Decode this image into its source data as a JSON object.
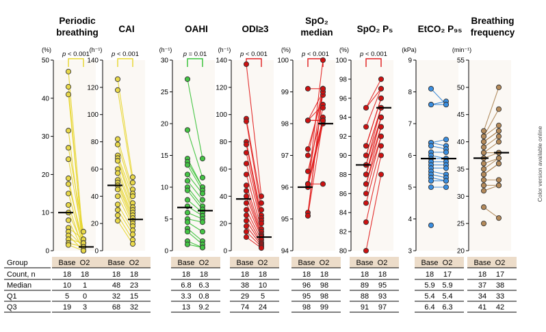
{
  "side_note": "Color version available online",
  "table": {
    "row_labels": [
      "Group",
      "Count, n",
      "Median",
      "Q1",
      "Q3"
    ],
    "group_labels": [
      "Base",
      "O2"
    ]
  },
  "colors": {
    "yellow": "#e7d52a",
    "yellow_fill": "#e8d84a",
    "green": "#33c033",
    "green_fill": "#44c444",
    "red": "#e01a1a",
    "red_fill": "#cc1111",
    "blue": "#2b7fd4",
    "blue_fill": "#3a8ee0",
    "brown": "#a8804f",
    "brown_fill": "#b48a5a",
    "panel_bg": "#fbf8f4",
    "table_header_bg": "#ecdcc9"
  },
  "chart_data": [
    {
      "type": "scatter",
      "title": [
        "Periodic",
        "breathing"
      ],
      "unit": "(%)",
      "ylim": [
        0,
        50
      ],
      "yticks": [
        0,
        10,
        20,
        30,
        40,
        50
      ],
      "pvalue": "p < 0.001",
      "color": "yellow",
      "pairs": [
        [
          47,
          2
        ],
        [
          43,
          0
        ],
        [
          41,
          1
        ],
        [
          31.5,
          0
        ],
        [
          27,
          5
        ],
        [
          24,
          3
        ],
        [
          19,
          0
        ],
        [
          17.5,
          2
        ],
        [
          15,
          1
        ],
        [
          12,
          0
        ],
        [
          10,
          1
        ],
        [
          8,
          0
        ],
        [
          6,
          3
        ],
        [
          5,
          1
        ],
        [
          4,
          0
        ],
        [
          3,
          2
        ],
        [
          2,
          1
        ],
        [
          1.5,
          0
        ]
      ],
      "median": [
        10,
        1
      ],
      "table": {
        "count": [
          18,
          18
        ],
        "median": [
          10,
          1
        ],
        "q1": [
          5,
          0
        ],
        "q3": [
          19,
          3
        ]
      }
    },
    {
      "type": "scatter",
      "title": [
        "CAI"
      ],
      "unit": "(h⁻¹)",
      "ylim": [
        0,
        140
      ],
      "yticks": [
        0,
        20,
        40,
        60,
        80,
        100,
        120,
        140
      ],
      "pvalue": "p < 0.001",
      "color": "yellow",
      "pairs": [
        [
          126,
          54
        ],
        [
          118,
          50
        ],
        [
          82,
          45
        ],
        [
          78,
          42
        ],
        [
          70,
          40
        ],
        [
          68,
          35
        ],
        [
          66,
          32
        ],
        [
          60,
          30
        ],
        [
          57,
          28
        ],
        [
          52,
          26
        ],
        [
          50,
          24
        ],
        [
          48,
          22
        ],
        [
          45,
          20
        ],
        [
          40,
          18
        ],
        [
          34,
          15
        ],
        [
          30,
          12
        ],
        [
          26,
          8
        ],
        [
          22,
          5
        ]
      ],
      "median": [
        48,
        23
      ],
      "table": {
        "count": [
          18,
          18
        ],
        "median": [
          48,
          23
        ],
        "q1": [
          32,
          15
        ],
        "q3": [
          68,
          32
        ]
      }
    },
    {
      "type": "scatter",
      "title": [
        "OAHI"
      ],
      "unit": "(h⁻¹)",
      "ylim": [
        0,
        30
      ],
      "yticks": [
        0,
        5,
        10,
        15,
        20,
        25,
        30
      ],
      "pvalue": "p = 0.01",
      "color": "green",
      "pairs": [
        [
          27,
          14.5
        ],
        [
          19,
          11.5
        ],
        [
          14.5,
          10
        ],
        [
          14,
          10
        ],
        [
          13.5,
          9.5
        ],
        [
          12,
          9
        ],
        [
          11,
          8
        ],
        [
          10,
          7
        ],
        [
          9.5,
          6.5
        ],
        [
          8,
          6
        ],
        [
          7,
          5.5
        ],
        [
          6,
          5
        ],
        [
          5,
          4.5
        ],
        [
          4.5,
          3
        ],
        [
          3.5,
          1.5
        ],
        [
          3,
          1
        ],
        [
          1.5,
          0.5
        ],
        [
          1,
          0.5
        ]
      ],
      "median": [
        6.8,
        6.3
      ],
      "table": {
        "count": [
          18,
          18
        ],
        "median": [
          6.8,
          6.3
        ],
        "q1": [
          3.3,
          0.8
        ],
        "q3": [
          13,
          9.2
        ]
      }
    },
    {
      "type": "scatter",
      "title": [
        "ODI≥3"
      ],
      "unit": "(h⁻¹)",
      "ylim": [
        0,
        140
      ],
      "yticks": [
        0,
        20,
        40,
        60,
        80,
        100,
        120,
        140
      ],
      "pvalue": "p < 0.001",
      "color": "red",
      "pairs": [
        [
          137,
          40
        ],
        [
          97,
          35
        ],
        [
          95,
          30
        ],
        [
          80,
          26
        ],
        [
          78,
          24
        ],
        [
          72,
          22
        ],
        [
          64,
          20
        ],
        [
          56,
          16
        ],
        [
          48,
          14
        ],
        [
          44,
          12
        ],
        [
          40,
          11
        ],
        [
          35,
          10
        ],
        [
          30,
          8
        ],
        [
          26,
          6
        ],
        [
          22,
          5
        ],
        [
          18,
          4
        ],
        [
          14,
          3
        ],
        [
          10,
          2
        ]
      ],
      "median": [
        38,
        10
      ],
      "table": {
        "count": [
          18,
          18
        ],
        "median": [
          38,
          10
        ],
        "q1": [
          29,
          5
        ],
        "q3": [
          74,
          24
        ]
      }
    },
    {
      "type": "scatter",
      "title": [
        "SpO₂",
        "median"
      ],
      "unit": "(%)",
      "ylim": [
        94,
        100
      ],
      "yticks": [
        94,
        95,
        96,
        97,
        98,
        99,
        100
      ],
      "pvalue": "p < 0.001",
      "color": "red",
      "pairs": [
        [
          99.1,
          99.1
        ],
        [
          98.1,
          99.0
        ],
        [
          98.1,
          98.6
        ],
        [
          98.1,
          98.1
        ],
        [
          97.2,
          98.9
        ],
        [
          97.0,
          99.1
        ],
        [
          96.5,
          98.5
        ],
        [
          96.1,
          96.1
        ],
        [
          96.1,
          98.2
        ],
        [
          96.1,
          98.1
        ],
        [
          96.1,
          99.1
        ],
        [
          96.0,
          98.0
        ],
        [
          95.2,
          99.0
        ],
        [
          95.1,
          98.1
        ],
        [
          95.1,
          99.1
        ],
        [
          96.1,
          100
        ],
        [
          98.1,
          98.1
        ],
        [
          96.1,
          98.1
        ]
      ],
      "median": [
        96,
        98
      ],
      "table": {
        "count": [
          18,
          18
        ],
        "median": [
          96,
          98
        ],
        "q1": [
          95,
          98
        ],
        "q3": [
          98,
          99
        ]
      }
    },
    {
      "type": "scatter",
      "title": [
        "SpO₂ P₅"
      ],
      "unit": "(%)",
      "ylim": [
        80,
        100
      ],
      "yticks": [
        80,
        82,
        84,
        86,
        88,
        90,
        92,
        94,
        96,
        98,
        100
      ],
      "pvalue": "p < 0.001",
      "color": "red",
      "pairs": [
        [
          95,
          98
        ],
        [
          95,
          97
        ],
        [
          93,
          97
        ],
        [
          91,
          96
        ],
        [
          91,
          96
        ],
        [
          90,
          95
        ],
        [
          90,
          95
        ],
        [
          89,
          95
        ],
        [
          89,
          94
        ],
        [
          88,
          94
        ],
        [
          88,
          94
        ],
        [
          88,
          93
        ],
        [
          87,
          93
        ],
        [
          87,
          92
        ],
        [
          86,
          92
        ],
        [
          85,
          91
        ],
        [
          83,
          90
        ],
        [
          80,
          88
        ]
      ],
      "median": [
        89,
        95
      ],
      "table": {
        "count": [
          18,
          18
        ],
        "median": [
          89,
          95
        ],
        "q1": [
          88,
          93
        ],
        "q3": [
          91,
          97
        ]
      }
    },
    {
      "type": "scatter",
      "title": [
        "EtCO₂ P₉₅"
      ],
      "unit": "(kPa)",
      "ylim": [
        3,
        9
      ],
      "yticks": [
        3,
        4,
        5,
        6,
        7,
        8,
        9
      ],
      "pvalue": "",
      "color": "blue",
      "pairs": [
        [
          8.1,
          7.6
        ],
        [
          7.6,
          7.7
        ],
        [
          7.6,
          7.6
        ],
        [
          6.4,
          6.5
        ],
        [
          6.4,
          6.3
        ],
        [
          6.3,
          6.2
        ],
        [
          6.1,
          6.1
        ],
        [
          6.0,
          5.9
        ],
        [
          5.9,
          5.9
        ],
        [
          5.8,
          5.8
        ],
        [
          5.7,
          5.7
        ],
        [
          5.6,
          5.6
        ],
        [
          5.5,
          5.4
        ],
        [
          5.4,
          5.3
        ],
        [
          5.3,
          5.2
        ],
        [
          5.2,
          5.2
        ],
        [
          5.0,
          5.0
        ],
        [
          3.8,
          null
        ]
      ],
      "median": [
        5.9,
        5.9
      ],
      "table": {
        "count": [
          18,
          17
        ],
        "median": [
          5.9,
          5.9
        ],
        "q1": [
          5.4,
          5.4
        ],
        "q3": [
          6.4,
          6.3
        ]
      }
    },
    {
      "type": "scatter",
      "title": [
        "Breathing",
        "frequency"
      ],
      "unit": "(min⁻¹)",
      "ylim": [
        20,
        55
      ],
      "yticks": [
        20,
        25,
        30,
        35,
        40,
        45,
        50,
        55
      ],
      "pvalue": "",
      "color": "brown",
      "pairs": [
        [
          42,
          50
        ],
        [
          41,
          46
        ],
        [
          41,
          43
        ],
        [
          40,
          42
        ],
        [
          40,
          42
        ],
        [
          39,
          41
        ],
        [
          38,
          40
        ],
        [
          38,
          38
        ],
        [
          37,
          38
        ],
        [
          36,
          37
        ],
        [
          35,
          37
        ],
        [
          34,
          36
        ],
        [
          34,
          36
        ],
        [
          33,
          33
        ],
        [
          32,
          32
        ],
        [
          31,
          32
        ],
        [
          28,
          26
        ],
        [
          25,
          null
        ]
      ],
      "median": [
        37,
        38
      ],
      "table": {
        "count": [
          18,
          17
        ],
        "median": [
          37,
          38
        ],
        "q1": [
          34,
          33
        ],
        "q3": [
          41,
          42
        ]
      }
    }
  ]
}
